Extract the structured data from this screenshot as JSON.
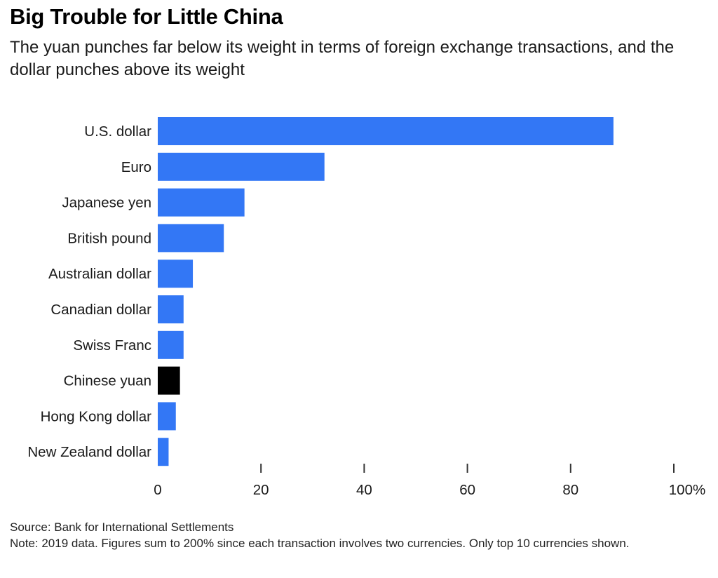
{
  "header": {
    "title": "Big Trouble for Little China",
    "subtitle": "The yuan punches far below its weight in terms of foreign exchange transactions, and the dollar punches above its weight"
  },
  "footer": {
    "source": "Source: Bank for International Settlements",
    "note": "Note: 2019 data. Figures sum to 200% since each transaction involves two currencies. Only top 10 currencies shown."
  },
  "colors": {
    "bar": "#3377f5",
    "highlight": "#000000",
    "text": "#1a1a1a"
  },
  "chart_data": {
    "type": "bar",
    "orientation": "horizontal",
    "title": "Big Trouble for Little China",
    "subtitle": "The yuan punches far below its weight in terms of foreign exchange transactions, and the dollar punches above its weight",
    "categories": [
      "U.S. dollar",
      "Euro",
      "Japanese yen",
      "British pound",
      "Australian dollar",
      "Canadian dollar",
      "Swiss Franc",
      "Chinese yuan",
      "Hong Kong dollar",
      "New Zealand dollar"
    ],
    "values": [
      88.3,
      32.3,
      16.8,
      12.8,
      6.8,
      5.0,
      5.0,
      4.3,
      3.5,
      2.1
    ],
    "highlight_category": "Chinese yuan",
    "xlim": [
      0,
      100
    ],
    "xticks": [
      0,
      20,
      40,
      60,
      80,
      100
    ],
    "xtick_labels": [
      "0",
      "20",
      "40",
      "60",
      "80",
      "100%"
    ],
    "xlabel": "",
    "ylabel": "",
    "grid": false,
    "legend": "none"
  }
}
